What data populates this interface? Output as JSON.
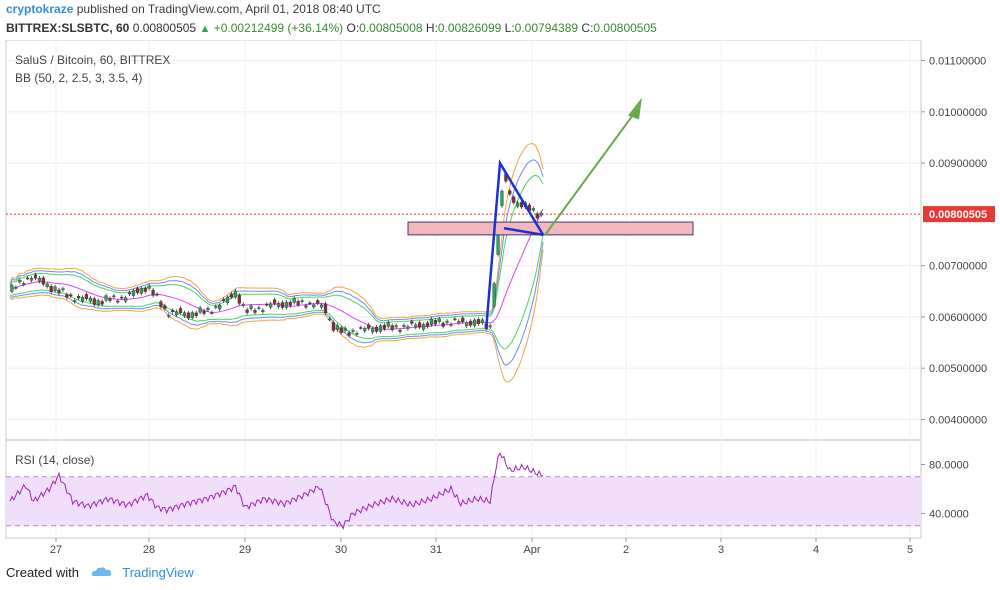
{
  "header": {
    "author": "cryptokraze",
    "published": "published on TradingView.com, April 01, 2018 08:40 UTC",
    "symbol": "BITTREX:SLSBTC, 60",
    "last": "0.00800505",
    "change": "+0.00212499 (+36.14%)",
    "open_label": "O:",
    "open": "0.00805008",
    "high_label": "H:",
    "high": "0.00826099",
    "low_label": "L:",
    "low": "0.00794389",
    "close_label": "C:",
    "close": "0.00800505"
  },
  "legend": {
    "title": "SaluS / Bitcoin, 60, BITTREX",
    "bb": "BB (50, 2, 2.5, 3, 3.5, 4)",
    "rsi": "RSI (14, close)"
  },
  "footer": {
    "created_with": "Created with",
    "brand": "TradingView"
  },
  "colors": {
    "bull": "#26a65b",
    "bear": "#8b2d2d",
    "basis": "#e040fb",
    "band1": "#4bd35f",
    "band2": "#6b8cf5",
    "band3": "#f4a340",
    "rsi": "#9c27b0",
    "pattern": "#1f2fd6",
    "arrow": "#6aa84f",
    "zone": "#f2b8bd",
    "last_price": "#e53935"
  },
  "chart_data": {
    "type": "candlestick",
    "x_ticks": [
      "27",
      "28",
      "29",
      "30",
      "31",
      "Apr",
      "2",
      "3",
      "4",
      "5"
    ],
    "y_ticks": [
      "0.01100000",
      "0.01000000",
      "0.00900000",
      "0.00800505",
      "0.00700000",
      "0.00600000",
      "0.00500000",
      "0.00400000"
    ],
    "y_range": [
      0.0036,
      0.0114
    ],
    "last_price": "0.00800505",
    "price_path": [
      [
        0,
        0.0065
      ],
      [
        10,
        0.0068
      ],
      [
        20,
        0.0066
      ],
      [
        30,
        0.0064
      ],
      [
        45,
        0.0063
      ],
      [
        60,
        0.0064
      ],
      [
        70,
        0.0066
      ],
      [
        80,
        0.0061
      ],
      [
        90,
        0.00605
      ],
      [
        100,
        0.0061
      ],
      [
        110,
        0.0063
      ],
      [
        115,
        0.0065
      ],
      [
        120,
        0.0061
      ],
      [
        135,
        0.00625
      ],
      [
        150,
        0.00628
      ],
      [
        160,
        0.0062
      ],
      [
        165,
        0.0058
      ],
      [
        170,
        0.0057
      ],
      [
        180,
        0.00575
      ],
      [
        190,
        0.0058
      ],
      [
        200,
        0.0058
      ],
      [
        210,
        0.00585
      ],
      [
        220,
        0.0059
      ],
      [
        230,
        0.0059
      ],
      [
        238,
        0.0059
      ],
      [
        245,
        0.0058
      ],
      [
        248,
        0.0072
      ],
      [
        250,
        0.0082
      ],
      [
        252,
        0.0087
      ],
      [
        256,
        0.0083
      ],
      [
        260,
        0.0082
      ],
      [
        265,
        0.0081
      ],
      [
        270,
        0.008
      ]
    ],
    "rsi_ticks": [
      "80.0000",
      "40.0000"
    ],
    "rsi_range": [
      20,
      100
    ],
    "rsi_band": [
      70,
      30
    ],
    "rsi_path": [
      [
        0,
        50
      ],
      [
        8,
        63
      ],
      [
        12,
        50
      ],
      [
        20,
        60
      ],
      [
        25,
        71
      ],
      [
        32,
        50
      ],
      [
        40,
        46
      ],
      [
        50,
        52
      ],
      [
        60,
        47
      ],
      [
        70,
        55
      ],
      [
        75,
        45
      ],
      [
        80,
        43
      ],
      [
        90,
        48
      ],
      [
        100,
        52
      ],
      [
        110,
        58
      ],
      [
        115,
        62
      ],
      [
        120,
        45
      ],
      [
        130,
        52
      ],
      [
        140,
        48
      ],
      [
        150,
        55
      ],
      [
        158,
        62
      ],
      [
        165,
        33
      ],
      [
        170,
        30
      ],
      [
        175,
        40
      ],
      [
        185,
        47
      ],
      [
        195,
        52
      ],
      [
        205,
        47
      ],
      [
        215,
        52
      ],
      [
        225,
        60
      ],
      [
        230,
        48
      ],
      [
        238,
        52
      ],
      [
        245,
        50
      ],
      [
        248,
        78
      ],
      [
        250,
        90
      ],
      [
        255,
        75
      ],
      [
        262,
        78
      ],
      [
        270,
        72
      ]
    ],
    "pattern": [
      [
        0.0058,
        243
      ],
      [
        0.009,
        250
      ],
      [
        0.0076,
        272
      ]
    ],
    "zone": [
      0.0076,
      0.00785
    ],
    "arrow": [
      [
        0.0076,
        272
      ],
      [
        0.0102,
        298
      ]
    ]
  }
}
